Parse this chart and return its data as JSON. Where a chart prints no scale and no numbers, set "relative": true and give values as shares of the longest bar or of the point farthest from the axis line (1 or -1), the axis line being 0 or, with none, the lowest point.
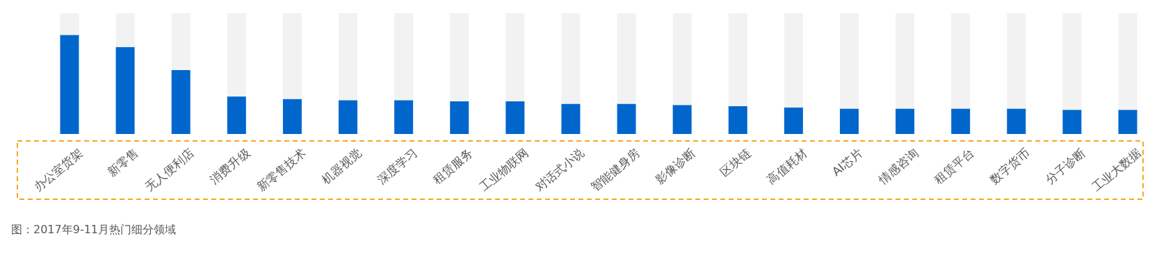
{
  "chart_data": {
    "type": "bar",
    "relative": true,
    "stacked": true,
    "categories": [
      "办公室货架",
      "新零售",
      "无人便利店",
      "消费升级",
      "新零售技术",
      "机器视觉",
      "深度学习",
      "租赁服务",
      "工业物联网",
      "对话式小说",
      "智能健身房",
      "影像诊断",
      "区块链",
      "高值耗材",
      "AI芯片",
      "情感咨询",
      "租赁平台",
      "数字货币",
      "分子诊断",
      "工业大数据"
    ],
    "series": [
      {
        "color": "#0066cc",
        "values": [
          0.82,
          0.72,
          0.53,
          0.31,
          0.29,
          0.28,
          0.28,
          0.27,
          0.27,
          0.25,
          0.25,
          0.24,
          0.23,
          0.22,
          0.21,
          0.21,
          0.21,
          0.21,
          0.2,
          0.2
        ]
      },
      {
        "color": "#f2f2f2",
        "values": [
          0.18,
          0.28,
          0.47,
          0.69,
          0.71,
          0.72,
          0.72,
          0.73,
          0.73,
          0.75,
          0.75,
          0.76,
          0.77,
          0.78,
          0.79,
          0.79,
          0.79,
          0.79,
          0.8,
          0.8
        ]
      }
    ],
    "annotations": [
      "图：2017年9-11月热门细分领域"
    ]
  }
}
